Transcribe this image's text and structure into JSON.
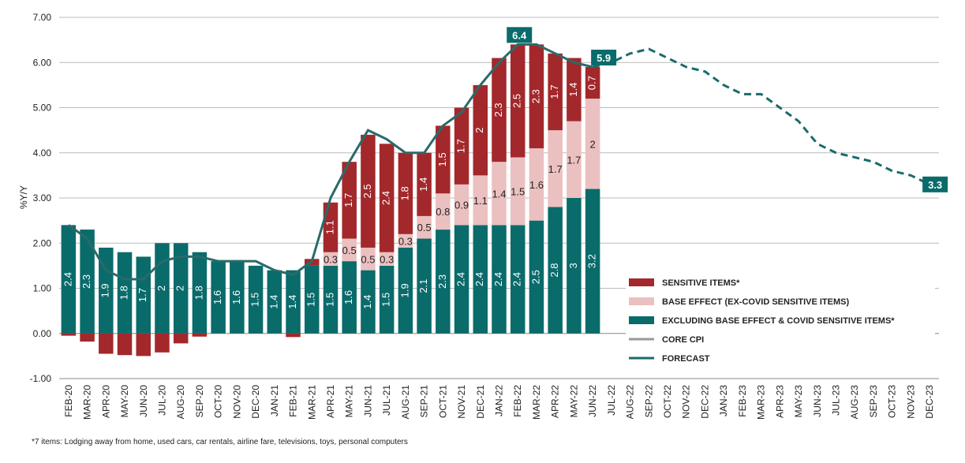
{
  "chart_data": {
    "type": "bar",
    "y_label": "%Y/Y",
    "footnote": "*7 items: Lodging away from home, used cars, car rentals, airline fare, televisions, toys, personal computers",
    "categories": [
      "FEB-20",
      "MAR-20",
      "APR-20",
      "MAY-20",
      "JUN-20",
      "JUL-20",
      "AUG-20",
      "SEP-20",
      "OCT-20",
      "NOV-20",
      "DEC-20",
      "JAN-21",
      "FEB-21",
      "MAR-21",
      "APR-21",
      "MAY-21",
      "JUN-21",
      "JUL-21",
      "AUG-21",
      "SEP-21",
      "OCT-21",
      "NOV-21",
      "DEC-21",
      "JAN-22",
      "FEB-22",
      "MAR-22",
      "APR-22",
      "MAY-22",
      "JUN-22",
      "JUL-22",
      "AUG-22",
      "SEP-22",
      "OCT-22",
      "NOV-22",
      "DEC-22",
      "JAN-23",
      "FEB-23",
      "MAR-23",
      "APR-23",
      "MAY-23",
      "JUN-23",
      "JUL-23",
      "AUG-23",
      "SEP-23",
      "OCT-23",
      "NOV-23",
      "DEC-23"
    ],
    "series": [
      {
        "name": "SENSITIVE ITEMS*",
        "kind": "bar",
        "color": "#a3282b",
        "values": [
          -0.05,
          -0.18,
          -0.45,
          -0.48,
          -0.5,
          -0.42,
          -0.22,
          -0.07,
          null,
          null,
          null,
          null,
          -0.08,
          0.15,
          1.1,
          1.7,
          2.5,
          2.4,
          1.8,
          1.4,
          1.5,
          1.7,
          2.0,
          2.3,
          2.5,
          2.3,
          1.7,
          1.4,
          0.7,
          null,
          null,
          null,
          null,
          null,
          null,
          null,
          null,
          null,
          null,
          null,
          null,
          null,
          null,
          null,
          null,
          null,
          null
        ]
      },
      {
        "name": "BASE EFFECT (EX-COVID SENSITIVE ITEMS)",
        "kind": "bar",
        "color": "#ebc0c0",
        "values": [
          null,
          null,
          null,
          null,
          null,
          null,
          null,
          null,
          null,
          null,
          null,
          null,
          null,
          null,
          0.3,
          0.5,
          0.5,
          0.3,
          0.3,
          0.5,
          0.8,
          0.9,
          1.1,
          1.4,
          1.5,
          1.6,
          1.7,
          1.7,
          2.0,
          null,
          null,
          null,
          null,
          null,
          null,
          null,
          null,
          null,
          null,
          null,
          null,
          null,
          null,
          null,
          null,
          null,
          null
        ]
      },
      {
        "name": "EXCLUDING BASE EFFECT & COVID SENSITIVE ITEMS*",
        "kind": "bar",
        "color": "#0a6b6b",
        "values": [
          2.4,
          2.3,
          1.9,
          1.8,
          1.7,
          2.0,
          2.0,
          1.8,
          1.6,
          1.6,
          1.5,
          1.4,
          1.4,
          1.5,
          1.5,
          1.6,
          1.4,
          1.5,
          1.9,
          2.1,
          2.3,
          2.4,
          2.4,
          2.4,
          2.4,
          2.5,
          2.8,
          3.0,
          3.2,
          null,
          null,
          null,
          null,
          null,
          null,
          null,
          null,
          null,
          null,
          null,
          null,
          null,
          null,
          null,
          null,
          null,
          null
        ]
      },
      {
        "name": "CORE CPI",
        "kind": "line",
        "color": "#999999",
        "values": [
          2.4,
          2.1,
          1.4,
          1.2,
          1.2,
          1.6,
          1.7,
          1.7,
          1.6,
          1.6,
          1.6,
          1.4,
          1.3,
          1.6,
          3.0,
          3.8,
          4.5,
          4.3,
          4.0,
          4.0,
          4.6,
          4.9,
          5.5,
          6.0,
          6.4,
          6.4,
          6.2,
          6.0,
          5.9,
          null,
          null,
          null,
          null,
          null,
          null,
          null,
          null,
          null,
          null,
          null,
          null,
          null,
          null,
          null,
          null,
          null,
          null
        ]
      },
      {
        "name": "FORECAST",
        "kind": "line",
        "dashed": true,
        "color": "#1a6b6b",
        "values": [
          null,
          null,
          null,
          null,
          null,
          null,
          null,
          null,
          null,
          null,
          null,
          null,
          null,
          null,
          null,
          null,
          null,
          null,
          null,
          null,
          null,
          null,
          null,
          null,
          null,
          null,
          null,
          null,
          5.9,
          6.0,
          6.2,
          6.3,
          6.1,
          5.9,
          5.8,
          5.5,
          5.3,
          5.3,
          5.0,
          4.7,
          4.2,
          4.0,
          3.9,
          3.8,
          3.6,
          3.5,
          3.3
        ]
      }
    ],
    "ylim": [
      -1,
      7
    ],
    "yticks": [
      {
        "value": -1,
        "label": "-1.00"
      },
      {
        "value": 0,
        "label": "0.00"
      },
      {
        "value": 1,
        "label": "1.00"
      },
      {
        "value": 2,
        "label": "2.00"
      },
      {
        "value": 3,
        "label": "3.00"
      },
      {
        "value": 4,
        "label": "4.00"
      },
      {
        "value": 5,
        "label": "5.00"
      },
      {
        "value": 6,
        "label": "6.00"
      },
      {
        "value": 7,
        "label": "7.00"
      }
    ],
    "grid": true
  }
}
